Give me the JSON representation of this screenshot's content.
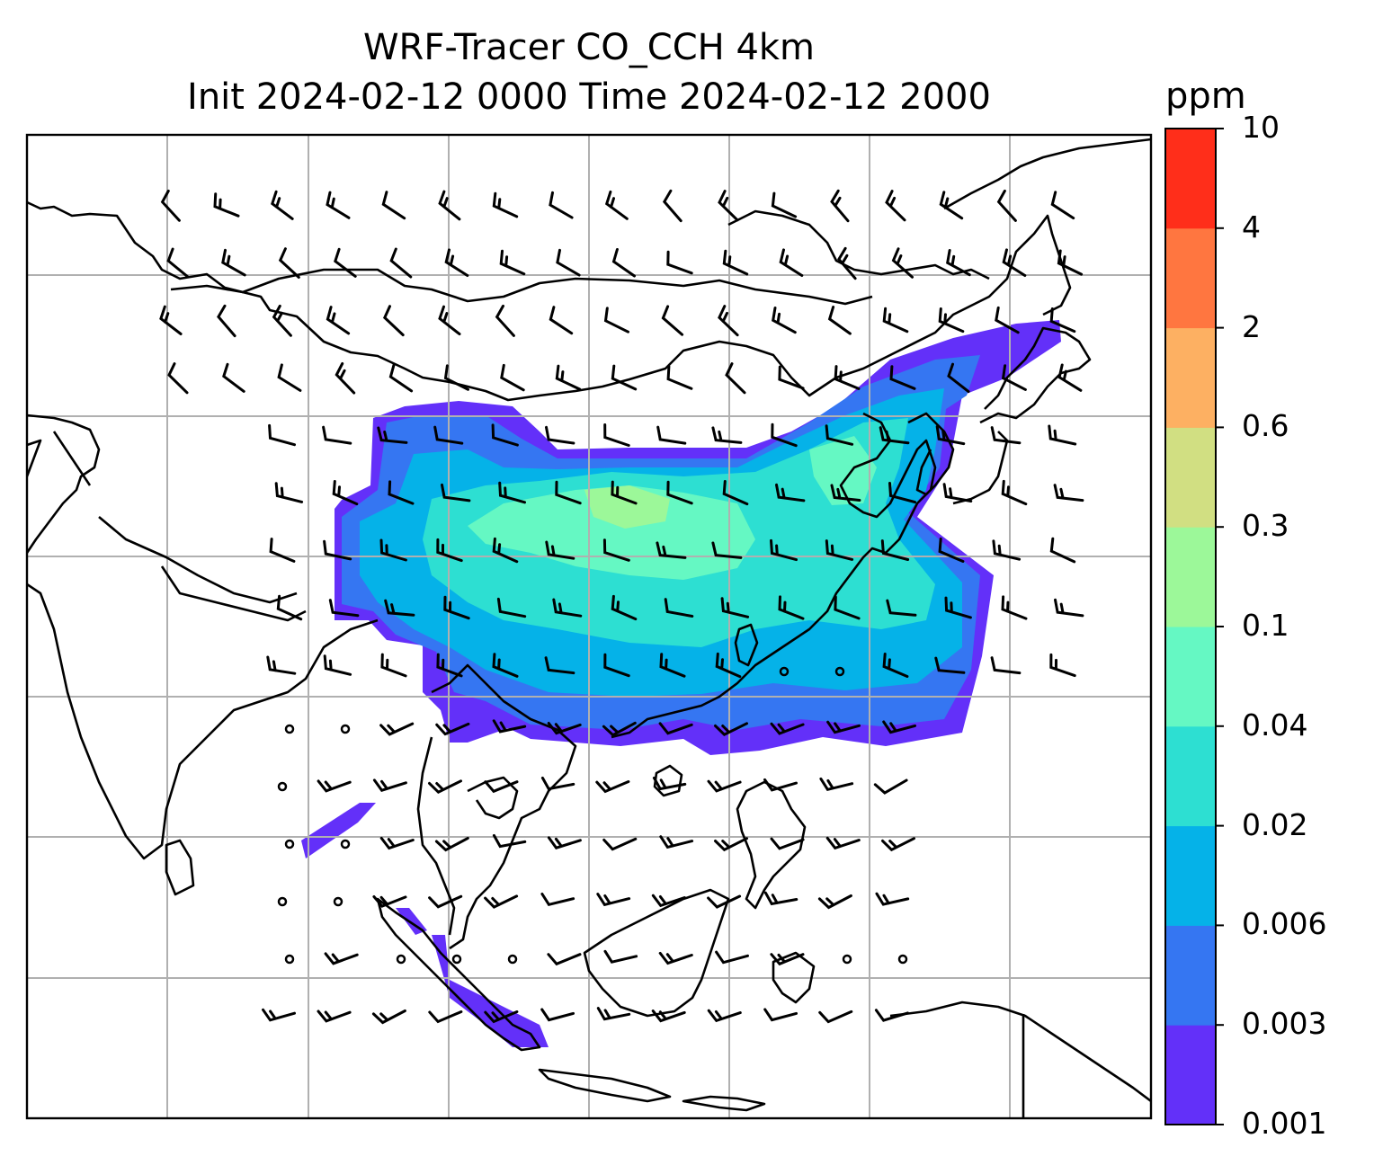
{
  "title": {
    "line1": "WRF-Tracer CO_CCH 4km",
    "line2": "Init 2024-02-12 0000 Time 2024-02-12 2000"
  },
  "colorbar": {
    "unit": "ppm",
    "levels": [
      "0.001",
      "0.003",
      "0.006",
      "0.02",
      "0.04",
      "0.1",
      "0.3",
      "0.6",
      "2",
      "4",
      "10"
    ],
    "colors": [
      "#6330f9",
      "#3576f2",
      "#05b2e8",
      "#2ddfd2",
      "#65f8c3",
      "#9cf899",
      "#d1df82",
      "#fdb062",
      "#ff7640",
      "#ff2e1a"
    ]
  },
  "map": {
    "gridlines": true,
    "coastlines": true,
    "overlay": "wind barbs",
    "filled_field": "CO_CCH tracer concentration"
  }
}
